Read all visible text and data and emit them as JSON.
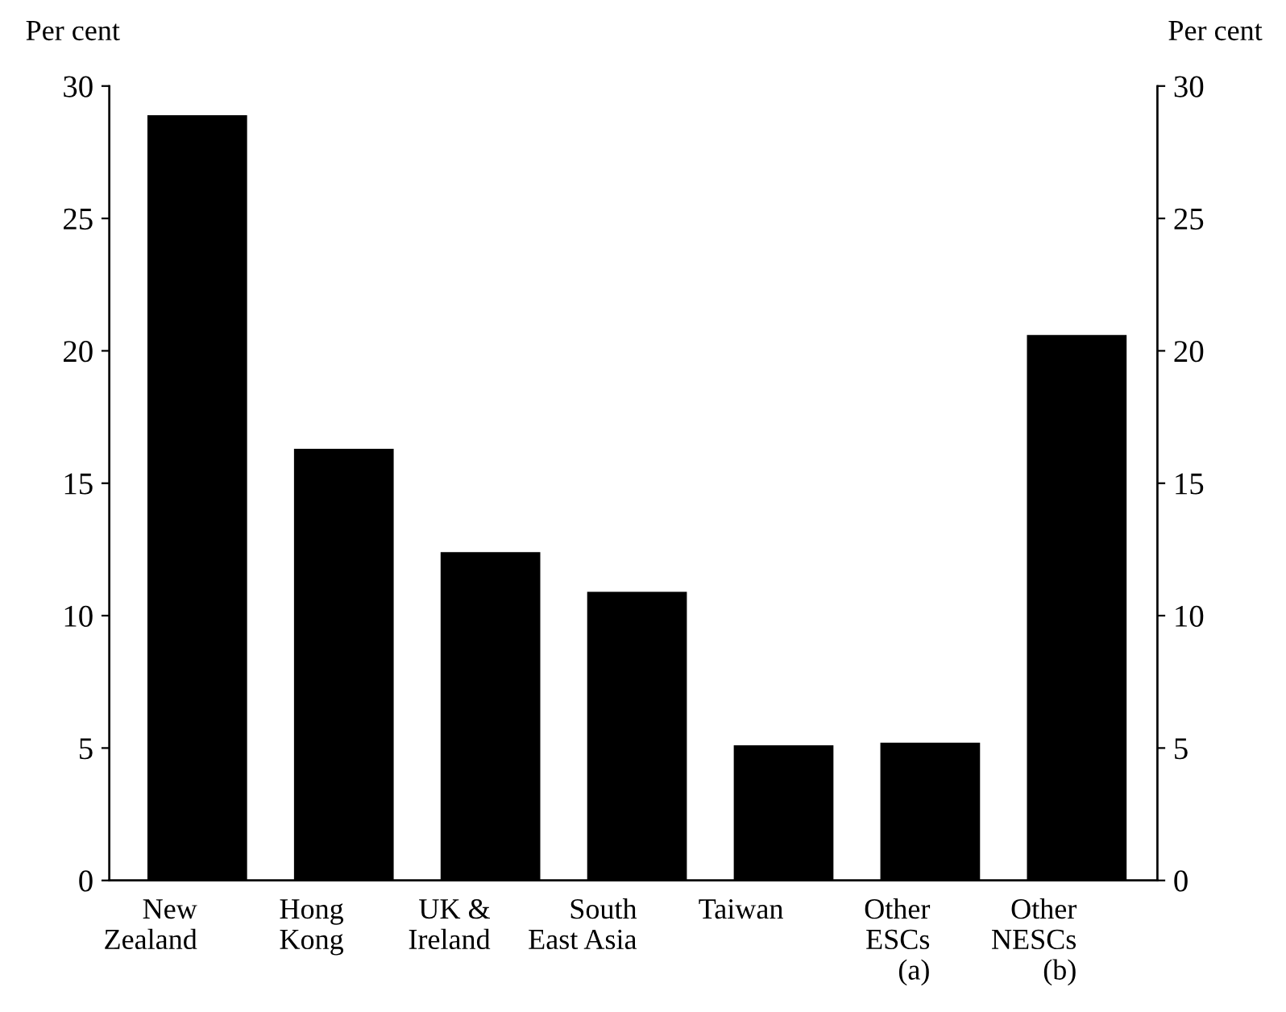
{
  "chart_data": {
    "type": "bar",
    "categories": [
      "New\nZealand",
      "Hong\nKong",
      "UK &\nIreland",
      "South\nEast Asia",
      "Taiwan",
      "Other\nESCs\n(a)",
      "Other\nNESCs\n(b)"
    ],
    "values": [
      28.9,
      16.3,
      12.4,
      10.9,
      5.1,
      5.2,
      20.6
    ],
    "color": "#000000",
    "ylabel": "Per cent",
    "y2label": "Per cent",
    "ylim": [
      0,
      30
    ],
    "yticks": [
      0,
      5,
      10,
      15,
      20,
      25,
      30
    ],
    "y2lim": [
      0,
      30
    ],
    "y2ticks": [
      0,
      5,
      10,
      15,
      20,
      25,
      30
    ],
    "grid": false,
    "legend": false
  }
}
